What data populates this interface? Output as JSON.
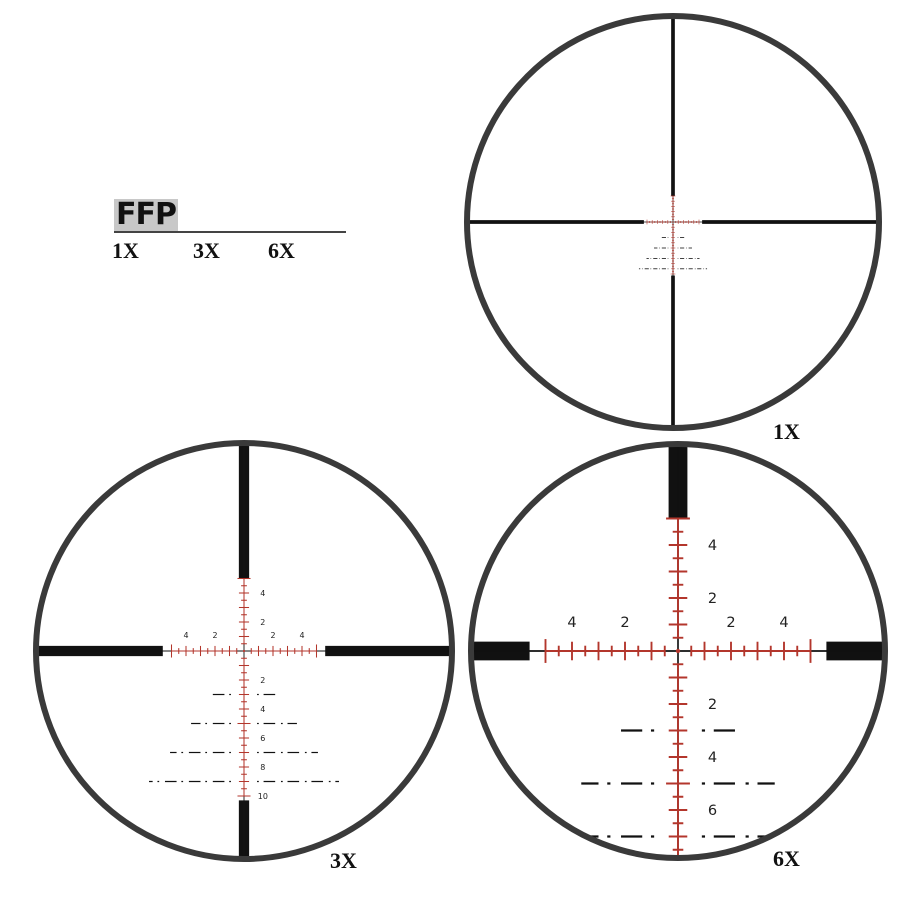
{
  "legend": {
    "title": "FFP",
    "magnifications": [
      "1X",
      "3X",
      "6X"
    ]
  },
  "scopes": [
    {
      "label": "1X",
      "magnification": 1
    },
    {
      "label": "3X",
      "magnification": 3
    },
    {
      "label": "6X",
      "magnification": 6
    }
  ],
  "reticle": {
    "horizontal_labels": [
      2,
      4
    ],
    "vertical_up_labels": [
      2,
      4
    ],
    "vertical_down_labels": [
      2,
      4,
      6,
      8,
      10
    ],
    "wind_hold_rows": [
      3,
      5,
      7,
      9
    ],
    "colors": {
      "ladder": "#b3362c",
      "crosshair": "#111111",
      "ring": "#3a3a3a"
    }
  }
}
